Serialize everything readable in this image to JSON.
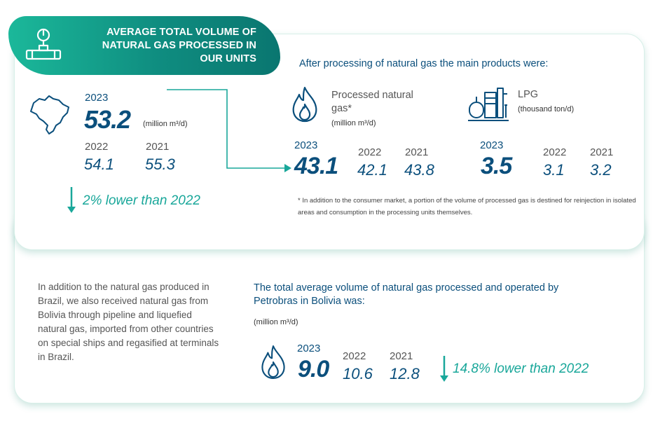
{
  "header": {
    "title": "AVERAGE TOTAL VOLUME OF NATURAL GAS PROCESSED IN OUR UNITS"
  },
  "colors": {
    "accent": "#19a79a",
    "primary": "#0b4f7c",
    "header_start": "#1bb89a",
    "header_end": "#0a7670"
  },
  "processed": {
    "year_current": "2023",
    "value_current": "53.2",
    "unit": "(million m³/d)",
    "year_prev": "2022",
    "value_prev": "54.1",
    "year_prev2": "2021",
    "value_prev2": "55.3",
    "change": "2% lower than 2022"
  },
  "products": {
    "intro": "After processing of natural gas the main products were:",
    "gas": {
      "label": "Processed natural gas*",
      "unit": "(million m³/d)",
      "year_current": "2023",
      "value_current": "43.1",
      "year_prev": "2022",
      "value_prev": "42.1",
      "year_prev2": "2021",
      "value_prev2": "43.8"
    },
    "lpg": {
      "label": "LPG",
      "unit": "(thousand ton/d)",
      "year_current": "2023",
      "value_current": "3.5",
      "year_prev": "2022",
      "value_prev": "3.1",
      "year_prev2": "2021",
      "value_prev2": "3.2"
    },
    "footnote": "* In addition to the consumer market, a portion of the volume of processed gas is destined for reinjection in isolated areas and consumption in the processing units themselves."
  },
  "bolivia": {
    "description": "In addition to the natural gas produced in Brazil, we also received natural gas from Bolivia through pipeline and liquefied natural gas, imported from other countries on special ships and regasified at terminals in Brazil.",
    "title": "The total average volume of natural gas processed and operated by Petrobras in Bolivia was:",
    "unit": "(million m³/d)",
    "year_current": "2023",
    "value_current": "9.0",
    "year_prev": "2022",
    "value_prev": "10.6",
    "year_prev2": "2021",
    "value_prev2": "12.8",
    "change": "14.8% lower than 2022"
  },
  "icons": [
    "pipeline-valve-icon",
    "brazil-map-icon",
    "flame-icon",
    "lpg-plant-icon",
    "arrow-down-icon"
  ]
}
